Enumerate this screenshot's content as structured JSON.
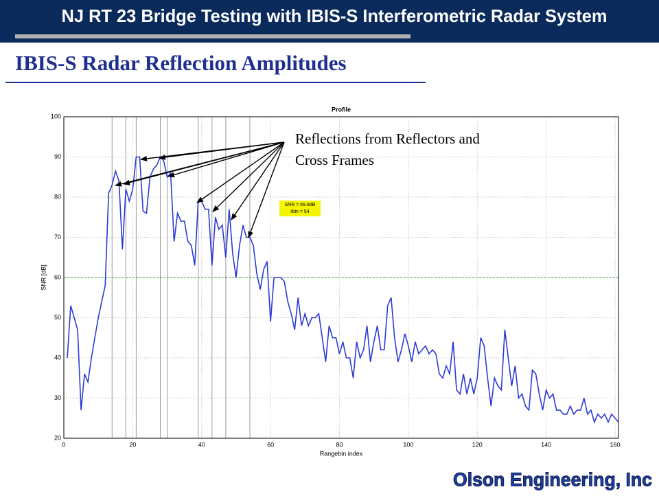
{
  "header": {
    "title": "NJ  RT 23 Bridge Testing with IBIS-S Interferometric  Radar System"
  },
  "subtitle": "IBIS-S Radar Reflection Amplitudes",
  "footer": "Olson Engineering, Inc",
  "chart_data": {
    "type": "line",
    "title": "Profile",
    "x_label": "Rangebin index",
    "y_label": "SNR [dB]",
    "x": [
      1,
      2,
      3,
      4,
      5,
      6,
      7,
      8,
      9,
      10,
      11,
      12,
      13,
      14,
      15,
      16,
      17,
      18,
      19,
      20,
      21,
      22,
      23,
      24,
      25,
      26,
      27,
      28,
      29,
      30,
      31,
      32,
      33,
      34,
      35,
      36,
      37,
      38,
      39,
      40,
      41,
      42,
      43,
      44,
      45,
      46,
      47,
      48,
      49,
      50,
      51,
      52,
      53,
      54,
      55,
      56,
      57,
      58,
      59,
      60,
      61,
      62,
      63,
      64,
      65,
      66,
      67,
      68,
      69,
      70,
      71,
      72,
      73,
      74,
      75,
      76,
      77,
      78,
      79,
      80,
      81,
      82,
      83,
      84,
      85,
      86,
      87,
      88,
      89,
      90,
      91,
      92,
      93,
      94,
      95,
      96,
      97,
      98,
      99,
      100,
      101,
      102,
      103,
      104,
      105,
      106,
      107,
      108,
      109,
      110,
      111,
      112,
      113,
      114,
      115,
      116,
      117,
      118,
      119,
      120,
      121,
      122,
      123,
      124,
      125,
      126,
      127,
      128,
      129,
      130,
      131,
      132,
      133,
      134,
      135,
      136,
      137,
      138,
      139,
      140,
      141,
      142,
      143,
      144,
      145,
      146,
      147,
      148,
      149,
      150,
      151,
      152,
      153,
      154,
      155,
      156,
      157,
      158,
      159,
      160,
      161
    ],
    "series": [
      {
        "color": "#2b3bd6",
        "values": [
          40,
          53,
          50,
          47,
          27,
          36,
          34,
          40,
          45,
          50,
          54,
          58,
          81,
          83,
          86.5,
          84,
          67,
          82,
          79,
          82,
          90,
          90,
          76.5,
          76,
          85,
          87,
          88,
          90,
          89,
          85,
          86,
          69,
          76,
          74,
          74,
          69,
          68,
          63,
          79,
          79,
          77,
          77,
          63,
          75,
          72,
          73,
          65,
          77,
          66,
          60,
          68,
          73,
          70,
          70,
          68,
          61,
          57,
          62,
          64,
          49,
          60,
          60,
          60,
          59,
          54,
          51,
          47,
          55,
          48,
          51,
          48,
          50,
          50,
          51,
          45,
          39,
          48,
          45,
          45,
          41,
          44,
          40,
          40,
          35,
          44,
          40,
          42,
          48,
          39,
          44,
          48,
          42,
          42,
          53,
          55,
          45,
          39,
          42,
          46,
          43,
          39,
          44,
          41,
          42,
          43,
          41,
          42,
          41,
          36,
          35,
          38,
          36,
          44,
          32,
          31,
          36,
          31,
          35,
          31,
          35,
          45,
          43,
          35,
          28,
          35,
          33,
          32,
          47,
          40,
          33,
          38,
          30,
          31,
          28,
          27,
          37,
          36,
          31,
          27,
          32,
          30,
          31,
          27,
          27,
          26,
          26,
          28,
          26,
          27,
          27,
          30,
          26,
          27,
          24,
          26,
          25,
          26,
          24,
          26,
          25,
          24
        ]
      }
    ],
    "xlim": [
      0,
      161
    ],
    "ylim": [
      20,
      100
    ],
    "xticks": [
      0,
      20,
      40,
      60,
      80,
      100,
      120,
      140,
      160
    ],
    "yticks": [
      20,
      30,
      40,
      50,
      60,
      70,
      80,
      90,
      100
    ],
    "grid": true,
    "reference_line": {
      "value": 60,
      "color": "#2ca02c"
    },
    "markers": [
      14,
      18,
      21,
      28,
      30,
      39,
      43,
      47,
      54
    ],
    "annotations": {
      "arrow_text": [
        "Reflections from Reflectors and",
        "Cross Frames"
      ],
      "box": [
        "SNR = 69.8dB",
        "rbin = 54"
      ]
    }
  }
}
